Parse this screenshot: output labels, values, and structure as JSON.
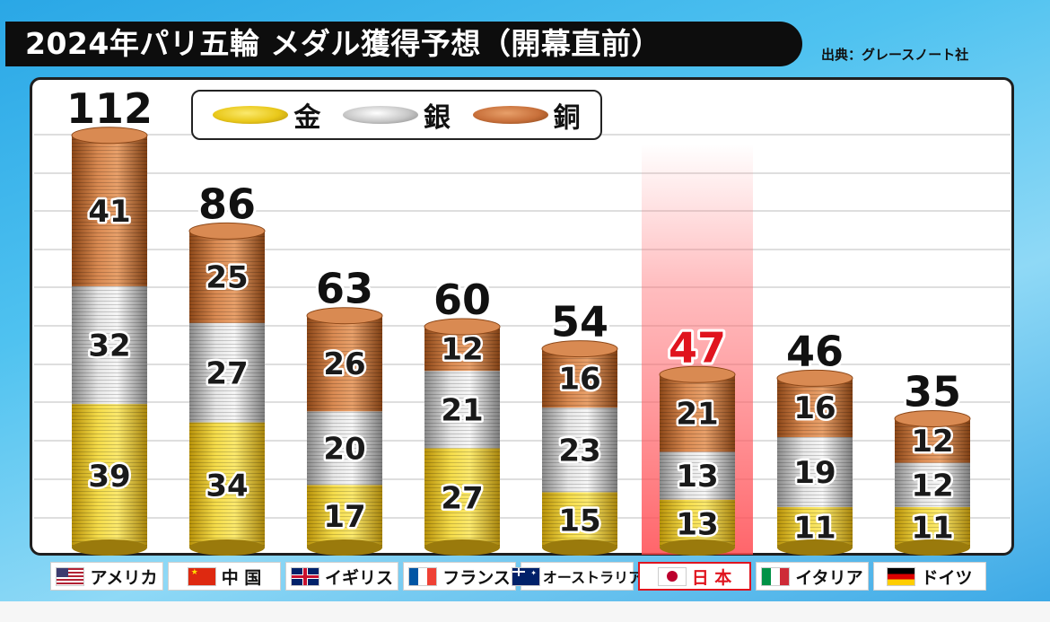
{
  "title": "2024年パリ五輪 メダル獲得予想（開幕直前）",
  "source": "出典：グレースノート社",
  "legend": [
    {
      "label": "金",
      "color": "#e9c81a"
    },
    {
      "label": "銀",
      "color": "#c7c7c7"
    },
    {
      "label": "銅",
      "color": "#c8703b"
    }
  ],
  "colors": {
    "gold": "#e9c81a",
    "silver": "#c7c7c7",
    "bronze": "#c8703b",
    "highlight": "#e0141e"
  },
  "chart_data": {
    "type": "bar",
    "stacked": true,
    "categories": [
      "アメリカ",
      "中 国",
      "イギリス",
      "フランス",
      "オーストラリア",
      "日 本",
      "イタリア",
      "ドイツ"
    ],
    "series": [
      {
        "name": "金",
        "values": [
          39,
          34,
          17,
          27,
          15,
          13,
          11,
          11
        ]
      },
      {
        "name": "銀",
        "values": [
          32,
          27,
          20,
          21,
          23,
          13,
          19,
          12
        ]
      },
      {
        "name": "銅",
        "values": [
          41,
          25,
          26,
          12,
          16,
          21,
          16,
          12
        ]
      }
    ],
    "totals": [
      112,
      86,
      63,
      60,
      54,
      47,
      46,
      35
    ],
    "highlight_category": "日 本"
  },
  "countries": [
    {
      "name": "アメリカ",
      "flag": "us-flag-icon"
    },
    {
      "name": "中 国",
      "flag": "china-flag-icon"
    },
    {
      "name": "イギリス",
      "flag": "uk-flag-icon"
    },
    {
      "name": "フランス",
      "flag": "france-flag-icon"
    },
    {
      "name": "オーストラリア",
      "flag": "australia-flag-icon"
    },
    {
      "name": "日 本",
      "flag": "japan-flag-icon",
      "highlight": true
    },
    {
      "name": "イタリア",
      "flag": "italy-flag-icon"
    },
    {
      "name": "ドイツ",
      "flag": "germany-flag-icon"
    }
  ]
}
